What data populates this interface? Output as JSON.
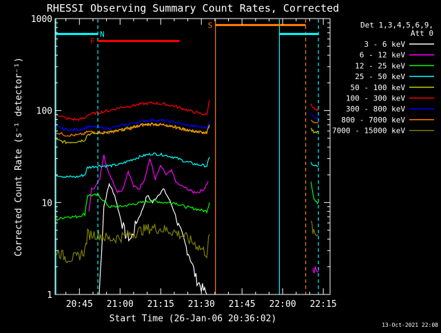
{
  "chart_data": {
    "type": "line",
    "title": "RHESSI Observing Summary Count Rates, Corrected",
    "ylabel": "Corrected Count Rate (s⁻¹ detector⁻¹)",
    "xlabel": "Start Time (26-Jan-06 20:36:02)",
    "y_scale": "log",
    "ylim": [
      1,
      1000
    ],
    "yticks": [
      1,
      10,
      100,
      1000
    ],
    "ytick_labels": [
      "1",
      "10",
      "100",
      "1000"
    ],
    "xlim_minutes": [
      36.03,
      137.5
    ],
    "xticks": [
      45,
      60,
      75,
      90,
      105,
      120,
      135
    ],
    "xtick_labels": [
      "20:45",
      "21:00",
      "21:15",
      "21:30",
      "21:45",
      "22:00",
      "22:15"
    ],
    "legend_header": [
      "Det 1,3,4,5,6,9,",
      "Att 0"
    ],
    "legend_position": "right",
    "footer_date": "13-Oct-2021 22:08",
    "series": [
      {
        "name": "3 - 6 keV",
        "color": "#ffffff",
        "segments": [
          {
            "x": [
              52.3,
              54,
              56,
              58,
              60,
              62,
              64,
              66,
              68,
              70,
              72,
              74,
              76,
              78,
              80,
              82,
              84,
              86,
              88,
              90,
              92
            ],
            "y": [
              1.0,
              9,
              16,
              12,
              7,
              4.5,
              4,
              6,
              8,
              12,
              10,
              12,
              14,
              11,
              8,
              5,
              3.5,
              2.5,
              1.5,
              1.2,
              1.0
            ]
          }
        ]
      },
      {
        "name": "6 - 12 keV",
        "color": "#ff00ff",
        "segments": [
          {
            "x": [
              48.5,
              49.5,
              51,
              52.5,
              54,
              55,
              57,
              59,
              61,
              63,
              65,
              67,
              69,
              71,
              73,
              75,
              77,
              79,
              81,
              83,
              85,
              87,
              89,
              91,
              92.5
            ],
            "y": [
              8,
              14,
              15,
              18,
              34,
              24,
              18,
              13,
              14,
              22,
              15,
              14,
              18,
              30,
              18,
              25,
              20,
              22,
              16,
              15,
              14,
              13,
              13,
              14,
              17
            ]
          },
          {
            "x": [
              131.2,
              133.2
            ],
            "y": [
              1.8,
              1.8
            ]
          }
        ]
      },
      {
        "name": "12 - 25 keV",
        "color": "#00ff00",
        "segments": [
          {
            "x": [
              36.5,
              40,
              44,
              47,
              48,
              52,
              56,
              60,
              64,
              68,
              72,
              76,
              80,
              84,
              88,
              92,
              93
            ],
            "y": [
              6.5,
              7,
              7,
              7.5,
              12,
              12,
              9,
              9,
              9.5,
              10,
              10.5,
              10,
              10,
              9,
              8.5,
              8,
              10
            ]
          },
          {
            "x": [
              130.5,
              131.5,
              132.5,
              133.2
            ],
            "y": [
              17,
              11,
              10,
              10
            ]
          }
        ]
      },
      {
        "name": "25 - 50 keV",
        "color": "#00ffff",
        "segments": [
          {
            "x": [
              36.5,
              40,
              44,
              47,
              48,
              52,
              56,
              60,
              64,
              68,
              72,
              76,
              80,
              84,
              88,
              92,
              93
            ],
            "y": [
              20,
              19,
              19,
              20,
              24,
              25,
              25,
              26,
              29,
              32,
              34,
              33,
              31,
              28,
              26,
              25,
              31
            ]
          },
          {
            "x": [
              130.5,
              131.5,
              132.5,
              133.2
            ],
            "y": [
              27,
              25,
              25,
              25
            ]
          }
        ]
      },
      {
        "name": "50 - 100 keV",
        "color": "#cccc00",
        "segments": [
          {
            "x": [
              36.5,
              40,
              44,
              47,
              48,
              52,
              56,
              60,
              64,
              68,
              72,
              76,
              80,
              84,
              88,
              92,
              93
            ],
            "y": [
              48,
              45,
              46,
              48,
              55,
              57,
              58,
              61,
              65,
              70,
              72,
              70,
              67,
              62,
              59,
              57,
              70
            ]
          },
          {
            "x": [
              130.5,
              131.5,
              132.5,
              133.2
            ],
            "y": [
              63,
              59,
              58,
              58
            ]
          }
        ]
      },
      {
        "name": "100 - 300 keV",
        "color": "#ff0000",
        "segments": [
          {
            "x": [
              36.5,
              40,
              44,
              47,
              48,
              52,
              56,
              60,
              64,
              68,
              72,
              76,
              80,
              84,
              88,
              92,
              93
            ],
            "y": [
              92,
              82,
              80,
              82,
              90,
              95,
              100,
              108,
              112,
              118,
              121,
              118,
              112,
              103,
              95,
              90,
              130
            ]
          },
          {
            "x": [
              130.5,
              131.5,
              132.5,
              133.2
            ],
            "y": [
              120,
              105,
              100,
              100
            ]
          }
        ]
      },
      {
        "name": "300 - 800 keV",
        "color": "#0000ff",
        "segments": [
          {
            "x": [
              36.5,
              40,
              44,
              47,
              48,
              52,
              56,
              60,
              64,
              68,
              72,
              76,
              80,
              84,
              88,
              92,
              93
            ],
            "y": [
              67,
              62,
              62,
              64,
              67,
              65,
              64,
              68,
              72,
              77,
              79,
              78,
              75,
              70,
              67,
              65,
              76
            ]
          },
          {
            "x": [
              130.5,
              131.5,
              132.5,
              133.2
            ],
            "y": [
              92,
              85,
              83,
              83
            ]
          }
        ]
      },
      {
        "name": "800 - 7000 keV",
        "color": "#ff8000",
        "segments": [
          {
            "x": [
              36.5,
              40,
              44,
              47,
              48,
              52,
              56,
              60,
              64,
              68,
              72,
              76,
              80,
              84,
              88,
              92,
              93
            ],
            "y": [
              58,
              54,
              54,
              56,
              59,
              58,
              58,
              61,
              64,
              69,
              71,
              69,
              66,
              62,
              59,
              58,
              68
            ]
          },
          {
            "x": [
              130.5,
              131.5,
              132.5,
              133.2
            ],
            "y": [
              80,
              75,
              73,
              73
            ]
          }
        ]
      },
      {
        "name": "7000 - 15000 keV",
        "color": "#808000",
        "segments": [
          {
            "x": [
              36.5,
              40,
              44,
              47,
              48,
              52,
              56,
              60,
              64,
              68,
              72,
              76,
              80,
              84,
              88,
              92,
              93
            ],
            "y": [
              3.0,
              2.5,
              2.5,
              3.0,
              4.5,
              4.5,
              4.0,
              4.2,
              4.5,
              5.0,
              5.3,
              5.1,
              4.8,
              4.2,
              3.5,
              2.8,
              4.5
            ]
          },
          {
            "x": [
              130.5,
              131.5,
              132.5,
              133.2
            ],
            "y": [
              6,
              4.5,
              4.5,
              4.5
            ]
          }
        ]
      }
    ],
    "annotations": [
      {
        "label": "N",
        "color": "#00ffff",
        "style": "dashed",
        "x": 51.8
      },
      {
        "label": "N",
        "color": "#00ffff",
        "style": "dashed",
        "x": 133.2
      },
      {
        "label": "",
        "color": "#00ffff",
        "style": "solid",
        "x": 36.3
      },
      {
        "label": "",
        "color": "#00ffff",
        "style": "solid",
        "x": 118.8
      },
      {
        "label": "S",
        "color": "#ff8000",
        "style": "solid",
        "x": 95.2
      },
      {
        "label": "",
        "color": "#ff8000",
        "style": "dashed",
        "x": 128.5
      }
    ],
    "bars": [
      {
        "label": "N",
        "color": "#00ffff",
        "x": [
          36.3,
          51.8
        ],
        "y": 680
      },
      {
        "label": "",
        "color": "#00ffff",
        "x": [
          118.8,
          133.2
        ],
        "y": 680
      },
      {
        "label": "F",
        "color": "#ff0000",
        "x": [
          51.8,
          82.0
        ],
        "y": 570
      },
      {
        "label": "S",
        "color": "#ff8000",
        "x": [
          95.2,
          128.5
        ],
        "y": 850
      }
    ]
  }
}
